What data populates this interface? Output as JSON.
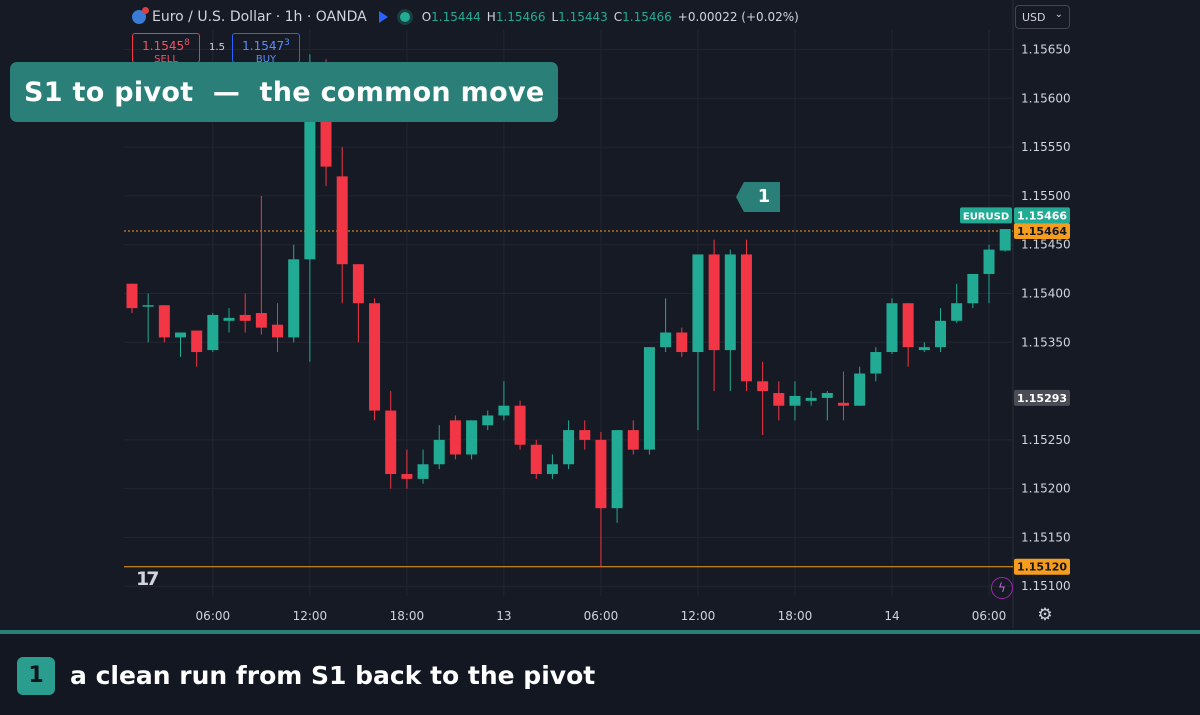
{
  "symbol": {
    "title": "Euro / U.S. Dollar · 1h · OANDA",
    "open_label": "O",
    "open": "1.15444",
    "high_label": "H",
    "high": "1.15466",
    "low_label": "L",
    "low": "1.15443",
    "close_label": "C",
    "close": "1.15466",
    "change": "+0.00022 (+0.02%)",
    "icon": "euro-dollar-icon"
  },
  "trading": {
    "sell_price": "1.1545",
    "sell_price_sup": "8",
    "sell_label": "SELL",
    "spread": "1.5",
    "buy_price": "1.1547",
    "buy_price_sup": "3",
    "buy_label": "BUY"
  },
  "currency_select": {
    "value": "USD"
  },
  "banner": {
    "text": "S1 to pivot  —  the common move"
  },
  "marker": {
    "number": "1"
  },
  "footer": {
    "badge": "1",
    "text": "a clean run from S1 back to the pivot"
  },
  "colors": {
    "up": "#22ab94",
    "down": "#f23645",
    "accent": "#2a7f78",
    "level": "#f59d1e",
    "background": "#161a25"
  },
  "chart_data": {
    "type": "candlestick",
    "ylim": [
      1.1509,
      1.1567
    ],
    "y_ticks": [
      "1.15650",
      "1.15600",
      "1.15550",
      "1.15500",
      "1.15450",
      "1.15400",
      "1.15350",
      "1.15250",
      "1.15200",
      "1.15150",
      "1.15100"
    ],
    "x_ticks": [
      {
        "label": "06:00",
        "index": 5
      },
      {
        "label": "12:00",
        "index": 11
      },
      {
        "label": "18:00",
        "index": 17
      },
      {
        "label": "13",
        "index": 23
      },
      {
        "label": "06:00",
        "index": 29
      },
      {
        "label": "12:00",
        "index": 35
      },
      {
        "label": "18:00",
        "index": 41
      },
      {
        "label": "14",
        "index": 47
      },
      {
        "label": "06:00",
        "index": 53
      }
    ],
    "candles": [
      {
        "o": 1.1541,
        "h": 1.1541,
        "l": 1.1538,
        "c": 1.15385
      },
      {
        "o": 1.15388,
        "h": 1.154,
        "l": 1.1535,
        "c": 1.15388
      },
      {
        "o": 1.15388,
        "h": 1.15388,
        "l": 1.1535,
        "c": 1.15355
      },
      {
        "o": 1.15355,
        "h": 1.1536,
        "l": 1.15335,
        "c": 1.1536
      },
      {
        "o": 1.15362,
        "h": 1.15362,
        "l": 1.15325,
        "c": 1.1534
      },
      {
        "o": 1.15342,
        "h": 1.1538,
        "l": 1.1534,
        "c": 1.15378
      },
      {
        "o": 1.15372,
        "h": 1.15385,
        "l": 1.1536,
        "c": 1.15375
      },
      {
        "o": 1.15378,
        "h": 1.154,
        "l": 1.1536,
        "c": 1.15372
      },
      {
        "o": 1.1538,
        "h": 1.155,
        "l": 1.15358,
        "c": 1.15365
      },
      {
        "o": 1.15368,
        "h": 1.1539,
        "l": 1.1534,
        "c": 1.15355
      },
      {
        "o": 1.15355,
        "h": 1.1545,
        "l": 1.1535,
        "c": 1.15435
      },
      {
        "o": 1.15435,
        "h": 1.15645,
        "l": 1.1533,
        "c": 1.156
      },
      {
        "o": 1.1562,
        "h": 1.1564,
        "l": 1.1551,
        "c": 1.1553
      },
      {
        "o": 1.1552,
        "h": 1.1555,
        "l": 1.1539,
        "c": 1.1543
      },
      {
        "o": 1.1543,
        "h": 1.1543,
        "l": 1.1535,
        "c": 1.1539
      },
      {
        "o": 1.1539,
        "h": 1.15395,
        "l": 1.1527,
        "c": 1.1528
      },
      {
        "o": 1.1528,
        "h": 1.153,
        "l": 1.152,
        "c": 1.15215
      },
      {
        "o": 1.15215,
        "h": 1.1524,
        "l": 1.152,
        "c": 1.1521
      },
      {
        "o": 1.1521,
        "h": 1.1524,
        "l": 1.15205,
        "c": 1.15225
      },
      {
        "o": 1.15225,
        "h": 1.15265,
        "l": 1.1522,
        "c": 1.1525
      },
      {
        "o": 1.1527,
        "h": 1.15275,
        "l": 1.1523,
        "c": 1.15235
      },
      {
        "o": 1.15235,
        "h": 1.1527,
        "l": 1.1523,
        "c": 1.1527
      },
      {
        "o": 1.15265,
        "h": 1.1528,
        "l": 1.1526,
        "c": 1.15275
      },
      {
        "o": 1.15275,
        "h": 1.1531,
        "l": 1.1527,
        "c": 1.15285
      },
      {
        "o": 1.15285,
        "h": 1.1529,
        "l": 1.1524,
        "c": 1.15245
      },
      {
        "o": 1.15245,
        "h": 1.1525,
        "l": 1.1521,
        "c": 1.15215
      },
      {
        "o": 1.15215,
        "h": 1.15235,
        "l": 1.1521,
        "c": 1.15225
      },
      {
        "o": 1.15225,
        "h": 1.1527,
        "l": 1.1522,
        "c": 1.1526
      },
      {
        "o": 1.1526,
        "h": 1.1527,
        "l": 1.1524,
        "c": 1.1525
      },
      {
        "o": 1.1525,
        "h": 1.15258,
        "l": 1.1512,
        "c": 1.1518
      },
      {
        "o": 1.1518,
        "h": 1.1526,
        "l": 1.15165,
        "c": 1.1526
      },
      {
        "o": 1.1526,
        "h": 1.1527,
        "l": 1.15235,
        "c": 1.1524
      },
      {
        "o": 1.1524,
        "h": 1.15345,
        "l": 1.15235,
        "c": 1.15345
      },
      {
        "o": 1.15345,
        "h": 1.15395,
        "l": 1.1534,
        "c": 1.1536
      },
      {
        "o": 1.1536,
        "h": 1.15365,
        "l": 1.15335,
        "c": 1.1534
      },
      {
        "o": 1.1534,
        "h": 1.1544,
        "l": 1.1526,
        "c": 1.1544
      },
      {
        "o": 1.1544,
        "h": 1.15455,
        "l": 1.153,
        "c": 1.15342
      },
      {
        "o": 1.15342,
        "h": 1.15445,
        "l": 1.153,
        "c": 1.1544
      },
      {
        "o": 1.1544,
        "h": 1.15455,
        "l": 1.153,
        "c": 1.1531
      },
      {
        "o": 1.1531,
        "h": 1.1533,
        "l": 1.15255,
        "c": 1.153
      },
      {
        "o": 1.15298,
        "h": 1.1531,
        "l": 1.1527,
        "c": 1.15285
      },
      {
        "o": 1.15285,
        "h": 1.1531,
        "l": 1.1527,
        "c": 1.15295
      },
      {
        "o": 1.1529,
        "h": 1.153,
        "l": 1.15285,
        "c": 1.15293
      },
      {
        "o": 1.15293,
        "h": 1.153,
        "l": 1.1527,
        "c": 1.15298
      },
      {
        "o": 1.15288,
        "h": 1.1532,
        "l": 1.1527,
        "c": 1.15285
      },
      {
        "o": 1.15285,
        "h": 1.15325,
        "l": 1.15285,
        "c": 1.15318
      },
      {
        "o": 1.15318,
        "h": 1.15345,
        "l": 1.1531,
        "c": 1.1534
      },
      {
        "o": 1.1534,
        "h": 1.15395,
        "l": 1.15338,
        "c": 1.1539
      },
      {
        "o": 1.1539,
        "h": 1.1539,
        "l": 1.15325,
        "c": 1.15345
      },
      {
        "o": 1.15342,
        "h": 1.1535,
        "l": 1.1534,
        "c": 1.15345
      },
      {
        "o": 1.15345,
        "h": 1.15385,
        "l": 1.1534,
        "c": 1.15372
      },
      {
        "o": 1.15372,
        "h": 1.1541,
        "l": 1.1537,
        "c": 1.1539
      },
      {
        "o": 1.1539,
        "h": 1.1542,
        "l": 1.15385,
        "c": 1.1542
      },
      {
        "o": 1.1542,
        "h": 1.1545,
        "l": 1.1539,
        "c": 1.15445
      },
      {
        "o": 1.15444,
        "h": 1.15466,
        "l": 1.15443,
        "c": 1.15466
      }
    ],
    "price_lines": [
      {
        "value": 1.15464,
        "label": "1.15464",
        "color": "#f59d1e",
        "style": "dotted"
      },
      {
        "value": 1.1512,
        "label": "1.15120",
        "color": "#f59d1e",
        "style": "solid"
      }
    ],
    "price_tags": [
      {
        "value": 1.1548,
        "name": "EURUSD",
        "label": "1.15466",
        "color": "#22ab94"
      },
      {
        "value": 1.15293,
        "label": "1.15293",
        "color": "#4a4d56"
      }
    ]
  }
}
